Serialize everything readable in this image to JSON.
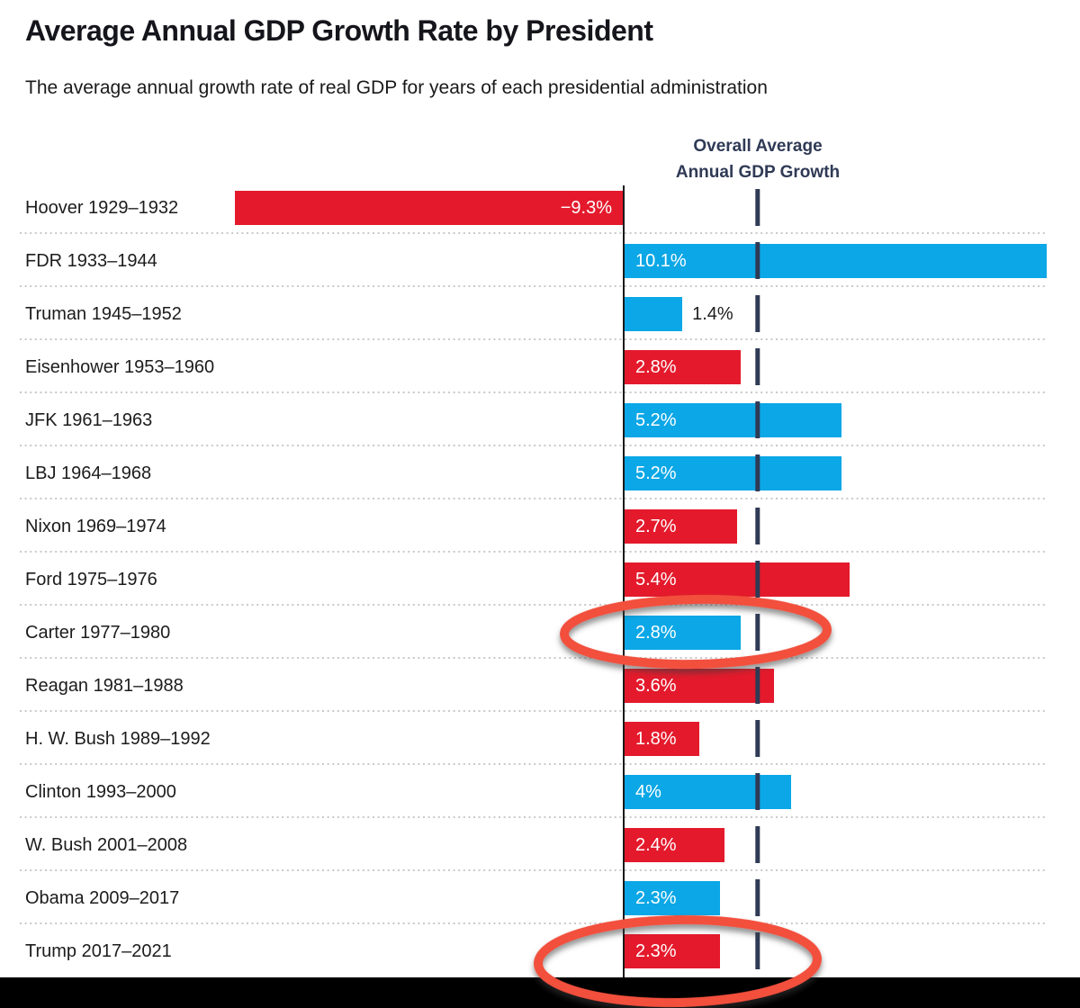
{
  "header": {
    "title": "Average Annual GDP Growth Rate by President",
    "subtitle": "The average annual growth rate of real GDP for years of each presidential administration"
  },
  "annotation": {
    "line1": "Overall Average",
    "line2": "Annual GDP Growth"
  },
  "colors": {
    "republican_red": "#e41a2c",
    "democrat_blue": "#0ba7e6",
    "navy_reference": "#2f3a55",
    "baseline_black": "#1b1b1b",
    "separator_gray": "#c9c9c9",
    "circle_annotation_red": "#f2503d",
    "text_dark": "#1c1c1c",
    "bottom_crop_black": "#000000"
  },
  "chart_data": {
    "type": "bar",
    "orientation": "horizontal",
    "title": "Average Annual GDP Growth Rate by President",
    "unit": "%",
    "grid": "dotted row separators",
    "xlim": [
      -9.3,
      10.1
    ],
    "categories": [
      "Hoover 1929–1932",
      "FDR 1933–1944",
      "Truman 1945–1952",
      "Eisenhower 1953–1960",
      "JFK 1961–1963",
      "LBJ 1964–1968",
      "Nixon 1969–1974",
      "Ford 1975–1976",
      "Carter 1977–1980",
      "Reagan 1981–1988",
      "H. W. Bush 1989–1992",
      "Clinton 1993–2000",
      "W. Bush 2001–2008",
      "Obama 2009–2017",
      "Trump 2017–2021"
    ],
    "values": [
      -9.3,
      10.1,
      1.4,
      2.8,
      5.2,
      5.2,
      2.7,
      5.4,
      2.8,
      3.6,
      1.8,
      4,
      2.4,
      2.3,
      2.3
    ],
    "value_labels": [
      "−9.3%",
      "10.1%",
      "1.4%",
      "2.8%",
      "5.2%",
      "5.2%",
      "2.7%",
      "5.4%",
      "2.8%",
      "3.6%",
      "1.8%",
      "4%",
      "2.4%",
      "2.3%",
      "2.3%"
    ],
    "bar_colors": [
      "red",
      "blue",
      "blue",
      "red",
      "blue",
      "blue",
      "red",
      "red",
      "blue",
      "red",
      "red",
      "blue",
      "red",
      "blue",
      "red"
    ],
    "circled_rows": [
      8,
      14
    ],
    "reference_line": {
      "label": "Overall Average Annual GDP Growth",
      "value": 3.2,
      "style": "dashed"
    },
    "legend": "none"
  }
}
